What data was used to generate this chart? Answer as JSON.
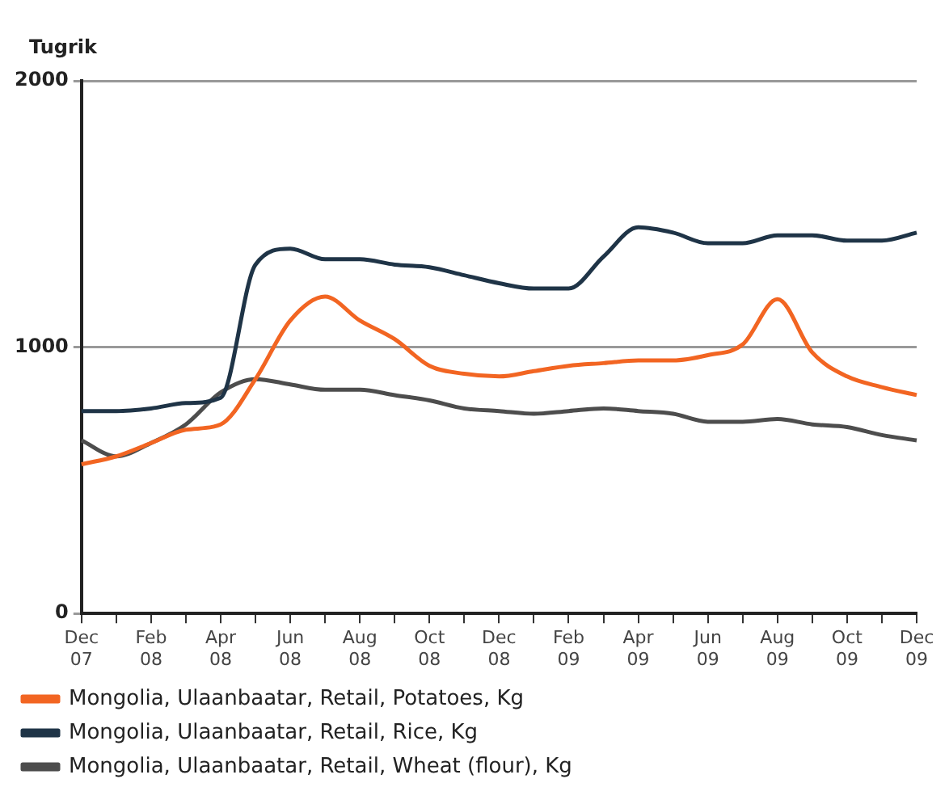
{
  "chart_data": {
    "type": "line",
    "ylabel": "Tugrik",
    "categories": [
      "Dec 07",
      null,
      "Feb 08",
      null,
      "Apr 08",
      null,
      "Jun 08",
      null,
      "Aug 08",
      null,
      "Oct 08",
      null,
      "Dec 08",
      null,
      "Feb 09",
      null,
      "Apr 09",
      null,
      "Jun 09",
      null,
      "Aug 09",
      null,
      "Oct 09",
      null,
      "Dec 09"
    ],
    "series": [
      {
        "name": "Mongolia, Ulaanbaatar, Retail, Potatoes, Kg",
        "color": "#f26522",
        "values": [
          560,
          590,
          640,
          690,
          710,
          880,
          1100,
          1190,
          1100,
          1030,
          930,
          900,
          890,
          910,
          930,
          940,
          950,
          950,
          970,
          1010,
          1180,
          980,
          890,
          850,
          820
        ]
      },
      {
        "name": "Mongolia, Ulaanbaatar, Retail, Rice, Kg",
        "color": "#1f3447",
        "values": [
          760,
          760,
          770,
          790,
          810,
          1310,
          1370,
          1330,
          1330,
          1310,
          1300,
          1270,
          1240,
          1220,
          1220,
          1340,
          1450,
          1430,
          1390,
          1390,
          1420,
          1420,
          1400,
          1400,
          1430
        ]
      },
      {
        "name": "Mongolia, Ulaanbaatar, Retail, Wheat (flour), Kg",
        "color": "#4d4d4d",
        "values": [
          650,
          590,
          640,
          710,
          830,
          880,
          860,
          840,
          840,
          820,
          800,
          770,
          760,
          750,
          760,
          770,
          760,
          750,
          720,
          720,
          730,
          710,
          700,
          670,
          650
        ]
      }
    ],
    "ylim": [
      0,
      2000
    ],
    "yticks": [
      0,
      1000,
      2000
    ],
    "grid": "y",
    "legend": "bottom",
    "marker": "none",
    "line_style": "solid"
  }
}
